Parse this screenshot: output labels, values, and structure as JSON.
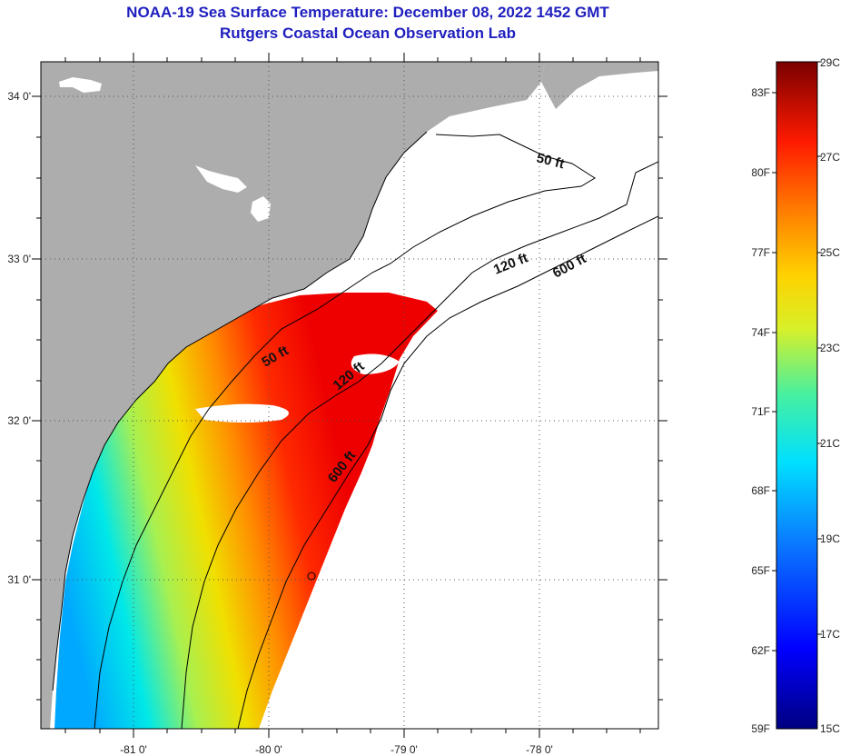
{
  "title": {
    "line1": "NOAA-19 Sea Surface Temperature:  December 08, 2022 1452 GMT",
    "line2": "Rutgers Coastal Ocean Observation Lab"
  },
  "axes": {
    "lat_labels": [
      "34 0'",
      "33 0'",
      "32 0'",
      "31 0'"
    ],
    "lon_labels": [
      "-81 0'",
      "-80 0'",
      "-79 0'",
      "-78 0'"
    ]
  },
  "contours": {
    "label_50_north": "50 ft",
    "label_120_north": "120 ft",
    "label_600_north": "600 ft",
    "label_50_south": "50 ft",
    "label_120_south": "120 ft",
    "label_600_south": "600 ft"
  },
  "colorbar": {
    "left_labels": [
      "83F",
      "80F",
      "77F",
      "74F",
      "71F",
      "68F",
      "65F",
      "62F",
      "59F"
    ],
    "right_labels": [
      "29C",
      "27C",
      "25C",
      "23C",
      "21C",
      "19C",
      "17C",
      "15C"
    ]
  },
  "colors": {
    "land": "#adadad",
    "title": "#1f1fbf"
  }
}
